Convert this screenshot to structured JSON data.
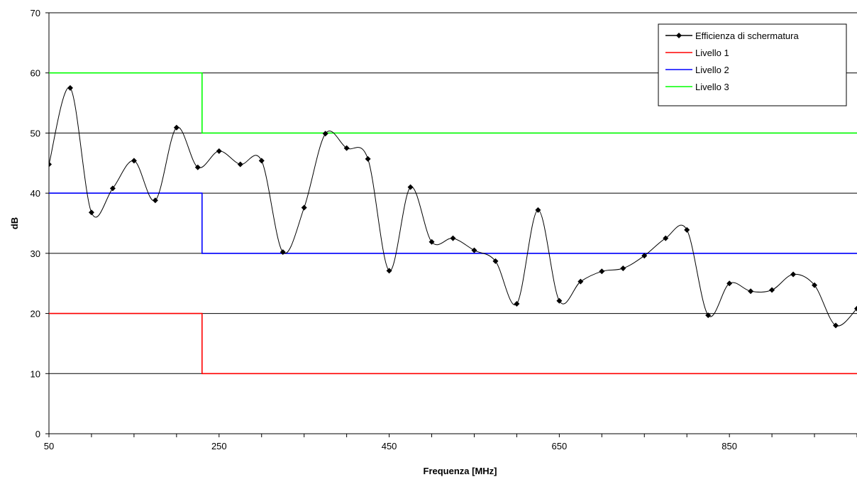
{
  "chart_data": {
    "type": "line",
    "title": "",
    "xlabel": "Frequenza [MHz]",
    "ylabel": "dB",
    "xlim": [
      50,
      1000
    ],
    "ylim": [
      0,
      70
    ],
    "x_ticks": [
      50,
      250,
      450,
      650,
      850
    ],
    "y_ticks": [
      0,
      10,
      20,
      30,
      40,
      50,
      60,
      70
    ],
    "grid": "horizontal",
    "legend_position": "top-right",
    "series": [
      {
        "name": "Efficienza di schermatura",
        "color": "#000000",
        "style": "smooth-line-with-diamond-markers",
        "x": [
          50,
          75,
          100,
          125,
          150,
          175,
          200,
          225,
          250,
          275,
          300,
          325,
          350,
          375,
          400,
          425,
          450,
          475,
          500,
          525,
          550,
          575,
          600,
          625,
          650,
          675,
          700,
          725,
          750,
          775,
          800,
          825,
          850,
          875,
          900,
          925,
          950,
          975,
          1000
        ],
        "values": [
          44.8,
          57.5,
          36.8,
          40.8,
          45.4,
          38.8,
          50.9,
          44.3,
          47.0,
          44.8,
          45.4,
          30.2,
          37.6,
          49.9,
          47.5,
          45.7,
          27.1,
          41.0,
          31.9,
          32.5,
          30.5,
          28.7,
          21.6,
          37.2,
          22.1,
          25.3,
          27.0,
          27.5,
          29.6,
          32.5,
          33.9,
          19.7,
          25.0,
          23.7,
          23.9,
          26.5,
          24.7,
          18.0,
          20.8
        ]
      },
      {
        "name": "Livello 1",
        "color": "#ff0000",
        "style": "step",
        "x": [
          50,
          230,
          230,
          1000
        ],
        "values": [
          20,
          20,
          10,
          10
        ]
      },
      {
        "name": "Livello 2",
        "color": "#0000ff",
        "style": "step",
        "x": [
          50,
          230,
          230,
          1000
        ],
        "values": [
          40,
          40,
          30,
          30
        ]
      },
      {
        "name": "Livello 3",
        "color": "#00ff00",
        "style": "step",
        "x": [
          50,
          230,
          230,
          1000
        ],
        "values": [
          60,
          60,
          50,
          50
        ]
      }
    ]
  }
}
